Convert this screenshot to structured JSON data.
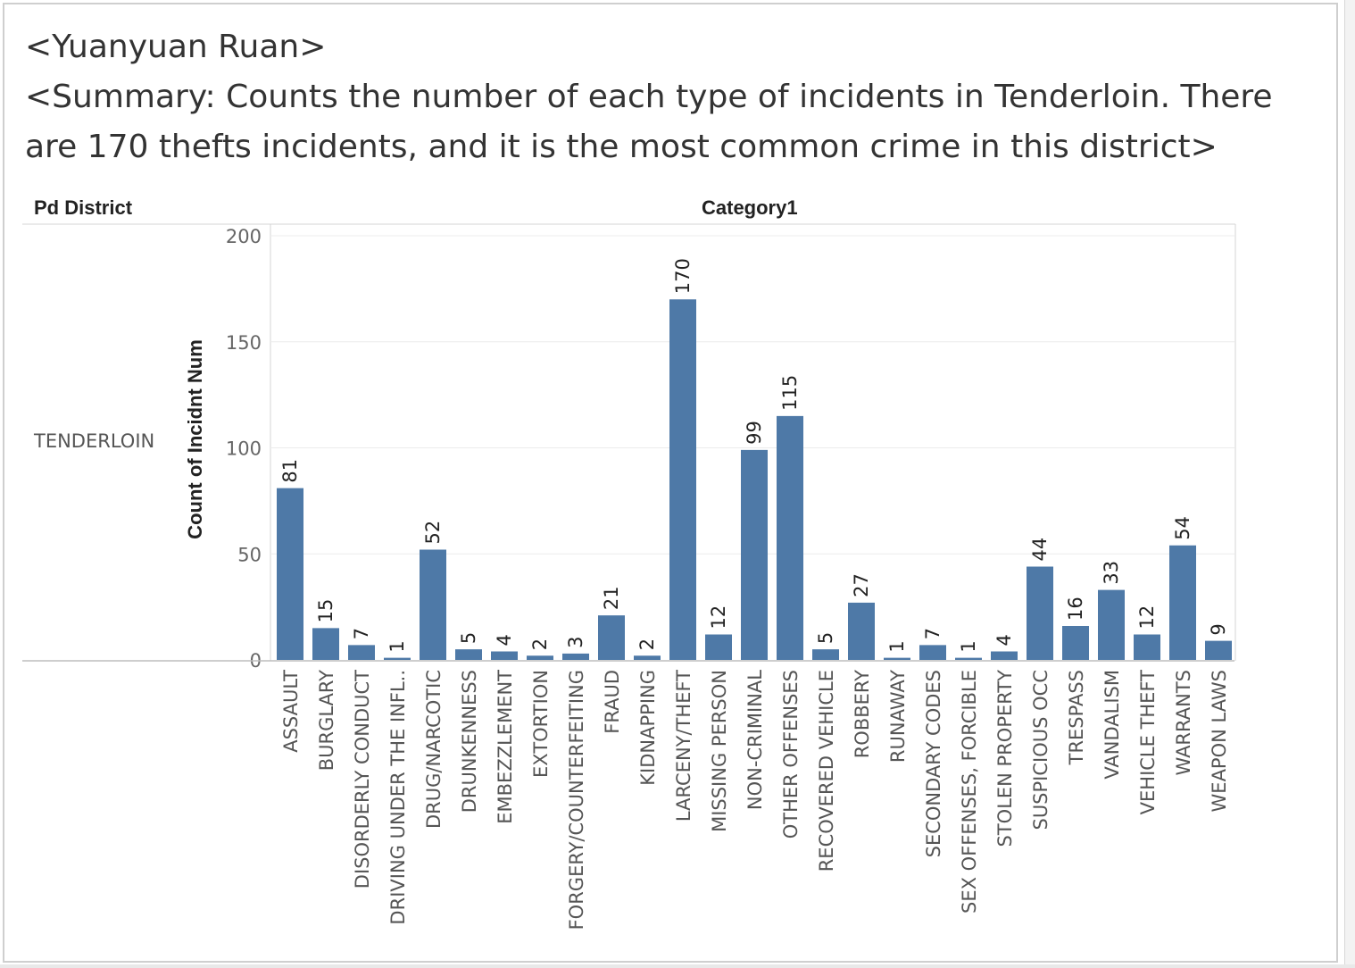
{
  "title": {
    "author": "<Yuanyuan Ruan>",
    "summary_line1": "<Summary: Counts the number of each type of incidents in Tenderloin. There",
    "summary_line2": "are 170 thefts incidents, and it is the most common crime in this district>"
  },
  "headers": {
    "row_field": "Pd District",
    "column_field": "Category1"
  },
  "row_value": "TENDERLOIN",
  "chart_data": {
    "type": "bar",
    "ylabel": "Count of Incidnt Num",
    "ylim": [
      0,
      200
    ],
    "yticks": [
      0,
      50,
      100,
      150,
      200
    ],
    "grid": true,
    "bar_color": "#4e79a7",
    "categories": [
      "ASSAULT",
      "BURGLARY",
      "DISORDERLY CONDUCT",
      "DRIVING UNDER THE INFL..",
      "DRUG/NARCOTIC",
      "DRUNKENNESS",
      "EMBEZZLEMENT",
      "EXTORTION",
      "FORGERY/COUNTERFEITING",
      "FRAUD",
      "KIDNAPPING",
      "LARCENY/THEFT",
      "MISSING PERSON",
      "NON-CRIMINAL",
      "OTHER OFFENSES",
      "RECOVERED VEHICLE",
      "ROBBERY",
      "RUNAWAY",
      "SECONDARY CODES",
      "SEX OFFENSES, FORCIBLE",
      "STOLEN PROPERTY",
      "SUSPICIOUS OCC",
      "TRESPASS",
      "VANDALISM",
      "VEHICLE THEFT",
      "WARRANTS",
      "WEAPON LAWS"
    ],
    "values": [
      81,
      15,
      7,
      1,
      52,
      5,
      4,
      2,
      3,
      21,
      2,
      170,
      12,
      99,
      115,
      5,
      27,
      1,
      7,
      1,
      4,
      44,
      16,
      33,
      12,
      54,
      9
    ]
  }
}
